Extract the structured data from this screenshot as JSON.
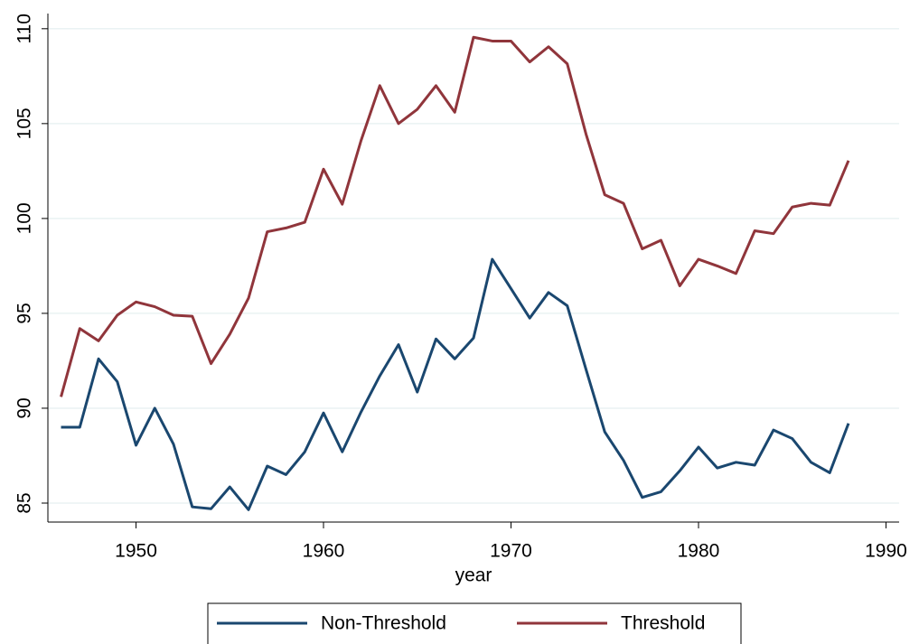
{
  "chart_data": {
    "type": "line",
    "x": [
      1946,
      1947,
      1948,
      1949,
      1950,
      1951,
      1952,
      1953,
      1954,
      1955,
      1956,
      1957,
      1958,
      1959,
      1960,
      1961,
      1962,
      1963,
      1964,
      1965,
      1966,
      1967,
      1968,
      1969,
      1970,
      1971,
      1972,
      1973,
      1974,
      1975,
      1976,
      1977,
      1978,
      1979,
      1980,
      1981,
      1982,
      1983,
      1984,
      1985,
      1986,
      1987,
      1988
    ],
    "series": [
      {
        "name": "Non-Threshold",
        "color": "#1a476f",
        "values": [
          89.0,
          89.0,
          92.6,
          91.4,
          88.05,
          90.0,
          88.1,
          84.8,
          84.7,
          85.85,
          84.65,
          86.95,
          86.5,
          87.7,
          89.75,
          87.7,
          89.8,
          91.7,
          93.35,
          90.85,
          93.65,
          92.6,
          93.7,
          97.85,
          96.3,
          94.75,
          96.1,
          95.4,
          92.05,
          88.75,
          87.25,
          85.3,
          85.6,
          86.7,
          87.95,
          86.85,
          87.15,
          87.0,
          88.85,
          88.4,
          87.15,
          86.6,
          89.2
        ]
      },
      {
        "name": "Threshold",
        "color": "#90353b",
        "values": [
          90.6,
          94.2,
          93.55,
          94.9,
          95.6,
          95.35,
          94.9,
          94.85,
          92.35,
          93.9,
          95.8,
          99.3,
          99.5,
          99.8,
          102.6,
          100.75,
          104.1,
          107.0,
          105.0,
          105.75,
          107.0,
          105.6,
          109.55,
          109.35,
          109.35,
          108.25,
          109.05,
          108.15,
          104.45,
          101.25,
          100.8,
          98.4,
          98.85,
          96.45,
          97.85,
          97.5,
          97.1,
          99.35,
          99.2,
          100.6,
          100.8,
          100.7,
          103.05
        ]
      }
    ],
    "x_label": "year",
    "xlim": [
      1945.3,
      1990.7
    ],
    "xticks": [
      1950,
      1960,
      1970,
      1980,
      1990
    ],
    "ylim": [
      84,
      110.8
    ],
    "yticks": [
      85,
      90,
      95,
      100,
      105,
      110
    ],
    "grid": true,
    "legend": "bottom"
  }
}
